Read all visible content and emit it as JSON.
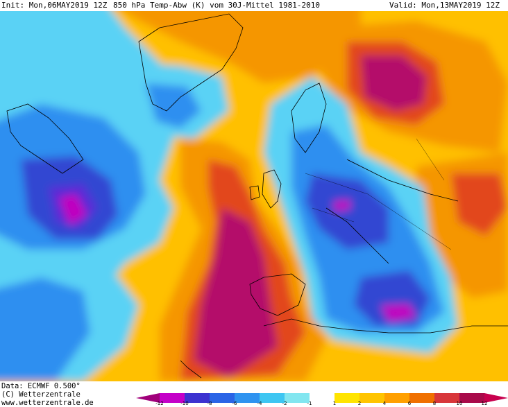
{
  "header": {
    "init": "Init: Mon,06MAY2019 12Z",
    "title": "850 hPa Temp-Abw (K) vom 30J-Mittel 1981-2010",
    "valid": "Valid: Mon,13MAY2019 12Z"
  },
  "footer": {
    "data_source": "Data: ECMWF  0.500°",
    "copyright": "(C) Wetterzentrale",
    "website": "www.wetterzentrale.de"
  },
  "legend": {
    "ticks": [
      "-12",
      "-10",
      "-8",
      "-6",
      "-4",
      "-2",
      "-1",
      "1",
      "2",
      "4",
      "6",
      "8",
      "10",
      "12"
    ],
    "colors": [
      "#a0007a",
      "#c400c8",
      "#3c32d0",
      "#2a64e6",
      "#2f93f0",
      "#3ec6f2",
      "#82e6f0",
      "#ffffff",
      "#ffe400",
      "#ffc400",
      "#ffa000",
      "#f07000",
      "#d8363a",
      "#a80a4a",
      "#c8004e"
    ]
  },
  "colors": {
    "extreme_warm": "#b4086a",
    "warm": "#e2461e",
    "orange": "#f59600",
    "yellow_orange": "#ffc000",
    "neutral": "#ffffff",
    "cool": "#5ad2f5",
    "cold": "#2f8ff0",
    "very_cold": "#3246d2",
    "extreme_cold": "#c000c0"
  }
}
